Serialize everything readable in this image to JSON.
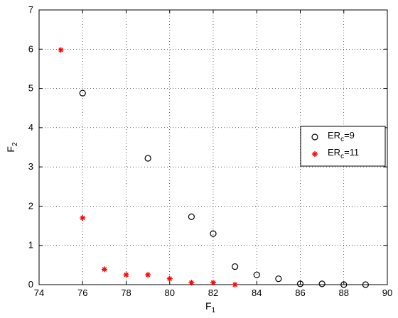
{
  "chart_data": {
    "type": "scatter",
    "xlabel": "F",
    "xlabel_sub": "1",
    "ylabel": "F",
    "ylabel_sub": "2",
    "xlim": [
      74,
      90
    ],
    "ylim": [
      0,
      7
    ],
    "xticks": [
      74,
      76,
      78,
      80,
      82,
      84,
      86,
      88,
      90
    ],
    "yticks": [
      0,
      1,
      2,
      3,
      4,
      5,
      6,
      7
    ],
    "grid": true,
    "legend_position": "right",
    "series": [
      {
        "name_main": "ER",
        "name_sub": "c",
        "name_suffix": "=9",
        "marker": "circle",
        "color": "#000000",
        "points": [
          [
            76,
            4.88
          ],
          [
            79,
            3.22
          ],
          [
            81,
            1.73
          ],
          [
            82,
            1.3
          ],
          [
            83,
            0.46
          ],
          [
            84,
            0.25
          ],
          [
            85,
            0.15
          ],
          [
            86,
            0.02
          ],
          [
            87,
            0.02
          ],
          [
            88,
            0.0
          ],
          [
            89,
            0.0
          ]
        ]
      },
      {
        "name_main": "ER",
        "name_sub": "c",
        "name_suffix": "=11",
        "marker": "asterisk",
        "color": "#ff0000",
        "points": [
          [
            75,
            5.98
          ],
          [
            76,
            1.7
          ],
          [
            77,
            0.39
          ],
          [
            78,
            0.25
          ],
          [
            79,
            0.25
          ],
          [
            80,
            0.15
          ],
          [
            81,
            0.05
          ],
          [
            82,
            0.05
          ],
          [
            83,
            0.0
          ]
        ]
      }
    ]
  }
}
